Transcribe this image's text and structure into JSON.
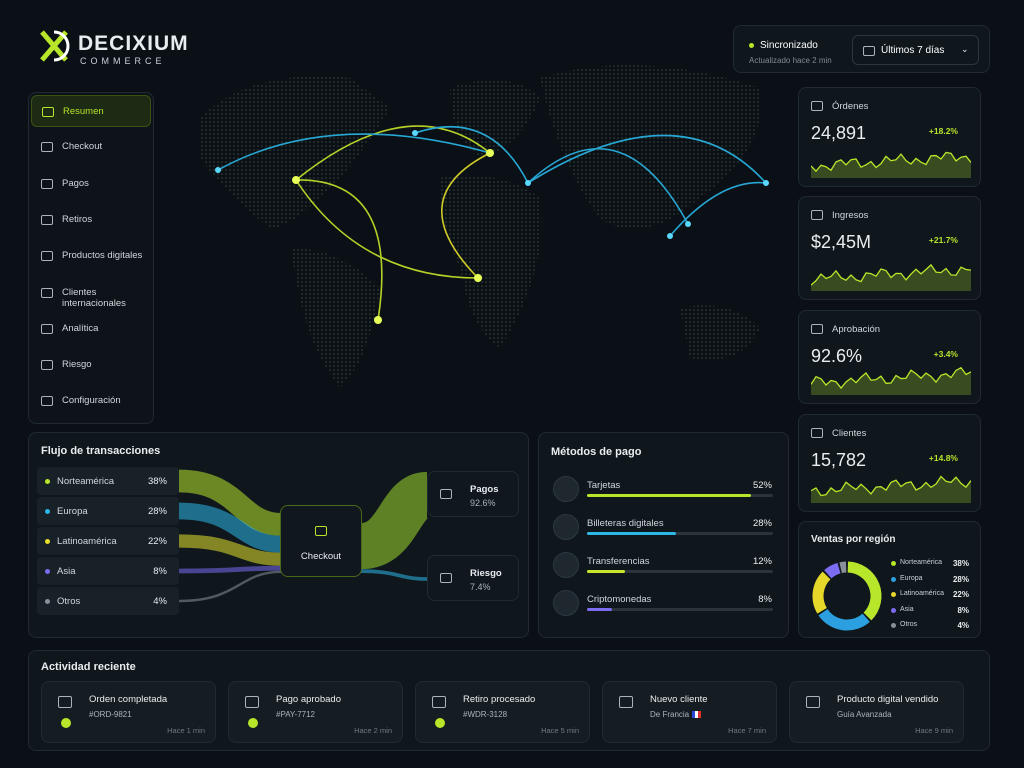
{
  "brand": {
    "name": "DECIXIUM",
    "sub": "COMMERCE"
  },
  "nav": [
    "Resumen",
    "Checkout",
    "Pagos",
    "Retiros",
    "Productos digitales",
    "Clientes internacionales",
    "Analítica",
    "Riesgo",
    "Configuración"
  ],
  "status": {
    "label": "Sincronizado",
    "updated": "Actualizado hace 2 min"
  },
  "range": "Últimos 7 días",
  "kpis": [
    {
      "label": "Órdenes",
      "value": "24,891",
      "change": "+18.2%"
    },
    {
      "label": "Ingresos",
      "value": "$2,45M",
      "change": "+21.7%"
    },
    {
      "label": "Aprobación",
      "value": "92.6%",
      "change": "+3.4%"
    },
    {
      "label": "Clientes",
      "value": "15,782",
      "change": "+14.8%"
    }
  ],
  "flow": {
    "title": "Flujo de transacciones",
    "hub": "Checkout",
    "regions": [
      {
        "name": "Norteamérica",
        "value": 38,
        "label": "38%",
        "color": "#b8e62a"
      },
      {
        "name": "Europa",
        "value": 28,
        "label": "28%",
        "color": "#2bb7e8"
      },
      {
        "name": "Latinoamérica",
        "value": 22,
        "label": "22%",
        "color": "#e6e02a"
      },
      {
        "name": "Asia",
        "value": 8,
        "label": "8%",
        "color": "#7b6cf2"
      },
      {
        "name": "Otros",
        "value": 4,
        "label": "4%",
        "color": "#8a9099"
      }
    ],
    "outputs": [
      {
        "name": "Pagos",
        "value": 92.6,
        "label": "92.6%",
        "color": "#9fd82a"
      },
      {
        "name": "Riesgo",
        "value": 7.4,
        "label": "7.4%",
        "color": "#2bb7e8"
      }
    ]
  },
  "methods": {
    "title": "Métodos de pago",
    "items": [
      {
        "name": "Tarjetas",
        "value": 52,
        "label": "52%",
        "color": "#b8e62a"
      },
      {
        "name": "Billeteras digitales",
        "value": 28,
        "label": "28%",
        "color": "#2bb7e8"
      },
      {
        "name": "Transferencias",
        "value": 12,
        "label": "12%",
        "color": "#c8e62a"
      },
      {
        "name": "Criptomonedas",
        "value": 8,
        "label": "8%",
        "color": "#7b6cf2"
      }
    ]
  },
  "sales": {
    "title": "Ventas por región",
    "segments": [
      {
        "name": "Norteamérica",
        "value": 38,
        "label": "38%",
        "color": "#b8e62a"
      },
      {
        "name": "Europa",
        "value": 28,
        "label": "28%",
        "color": "#2b9fe0"
      },
      {
        "name": "Latinoamérica",
        "value": 22,
        "label": "22%",
        "color": "#e6d82a"
      },
      {
        "name": "Asia",
        "value": 8,
        "label": "8%",
        "color": "#7b6cf2"
      },
      {
        "name": "Otros",
        "value": 4,
        "label": "4%",
        "color": "#8a9099"
      }
    ]
  },
  "activity": {
    "title": "Actividad reciente",
    "items": [
      {
        "title": "Orden completada",
        "sub": "#ORD-9821",
        "time": "Hace 1 min"
      },
      {
        "title": "Pago aprobado",
        "sub": "#PAY-7712",
        "time": "Hace 2 min"
      },
      {
        "title": "Retiro procesado",
        "sub": "#WDR-3128",
        "time": "Hace 5 min"
      },
      {
        "title": "Nuevo cliente",
        "sub": "De Francia",
        "time": "Hace 7 min"
      },
      {
        "title": "Producto digital vendido",
        "sub": "Guía Avanzada",
        "time": "Hace 9 min"
      }
    ]
  }
}
